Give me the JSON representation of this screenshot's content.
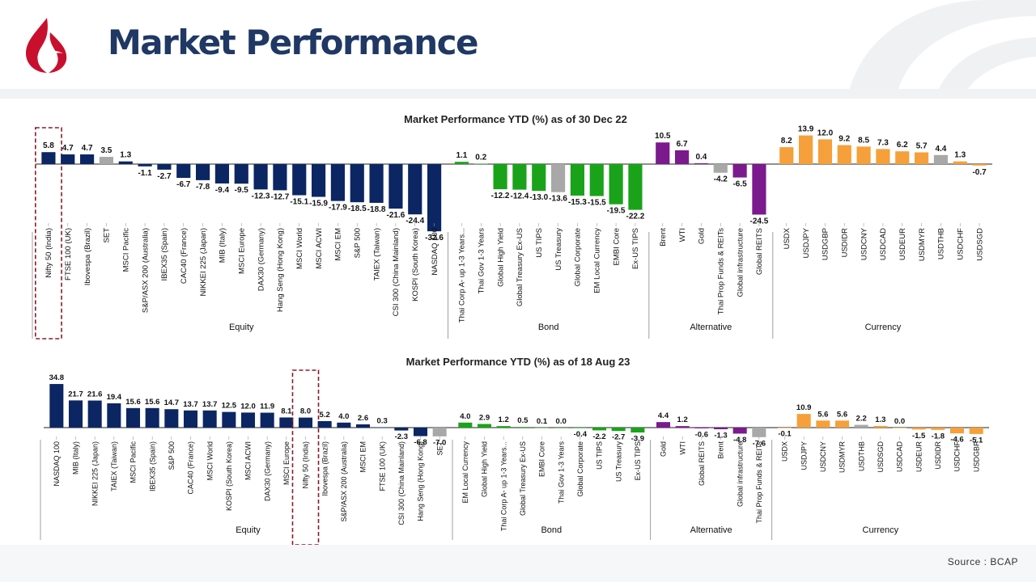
{
  "header": {
    "title": "Market Performance"
  },
  "footer": {
    "source": "Source : BCAP"
  },
  "colors": {
    "Equity": "#0b2663",
    "Bond": "#1aa31a",
    "Alternative": "#7a1a8c",
    "Currency": "#f5a03a",
    "Neutral": "#a8a8a8",
    "Title": "#1f3864",
    "Logo": "#c8102e",
    "Highlight": "#8b1a2b"
  },
  "chart_data": [
    {
      "type": "bar",
      "title": "Market Performance YTD (%) as of 30 Dec 22",
      "highlight": "Nifty 50 (India)",
      "groups": [
        {
          "name": "Equity",
          "color": "#0b2663",
          "categories": [
            "Nifty 50 (India)",
            "FTSE 100 (UK)",
            "Ibovespa (Brazil)",
            "SET",
            "MSCI Pacific",
            "S&P/ASX 200 (Australia)",
            "IBEX35 (Spain)",
            "CAC40 (France)",
            "NIKKEI 225 (Japan)",
            "MIB (Italy)",
            "MSCI Europe",
            "DAX30 (Germany)",
            "Hang Seng (Hong Kong)",
            "MSCI World",
            "MSCI ACWI",
            "MSCI EM",
            "S&P 500",
            "TAIEX (Taiwan)",
            "CSI 300 (China Mainland)",
            "KOSPI (South Korea)",
            "NASDAQ 100"
          ],
          "values": [
            5.8,
            4.7,
            4.7,
            3.5,
            1.3,
            -1.1,
            -2.7,
            -6.7,
            -7.8,
            -9.4,
            -9.5,
            -12.3,
            -12.7,
            -15.1,
            -15.9,
            -17.9,
            -18.5,
            -18.8,
            -21.6,
            -24.4,
            -32.6
          ],
          "gray": [
            "SET"
          ]
        },
        {
          "name": "Bond",
          "color": "#1aa31a",
          "categories": [
            "Thai Corp A- up 1-3 Years...",
            "Thai Gov 1-3 Years",
            "Global High Yield",
            "Global Treasury Ex-US",
            "US TIPS",
            "US Treasury",
            "Global Corporate",
            "EM Local Currency",
            "EMBI Core",
            "Ex-US TIPS"
          ],
          "values": [
            1.1,
            0.2,
            -12.2,
            -12.4,
            -13.0,
            -13.6,
            -15.3,
            -15.5,
            -19.5,
            -22.2
          ],
          "gray": [
            "US Treasury"
          ]
        },
        {
          "name": "Alternative",
          "color": "#7a1a8c",
          "categories": [
            "Brent",
            "WTI",
            "Gold",
            "Thai Prop Funds & REITs",
            "Global infrastructure",
            "Global REITS"
          ],
          "values": [
            10.5,
            6.7,
            0.4,
            -4.2,
            -6.5,
            -24.5
          ],
          "gray": [
            "Thai Prop Funds & REITs"
          ]
        },
        {
          "name": "Currency",
          "color": "#f5a03a",
          "categories": [
            "USDX",
            "USDJPY",
            "USDGBP",
            "USDIDR",
            "USDCNY",
            "USDCAD",
            "USDEUR",
            "USDMYR",
            "USDTHB",
            "USDCHF",
            "USDSGD"
          ],
          "values": [
            8.2,
            13.9,
            12.0,
            9.2,
            8.5,
            7.3,
            6.2,
            5.7,
            4.4,
            1.3,
            -0.7
          ],
          "gray": [
            "USDTHB"
          ]
        }
      ]
    },
    {
      "type": "bar",
      "title": "Market Performance YTD (%) as of 18 Aug 23",
      "highlight": "Nifty 50 (India)",
      "groups": [
        {
          "name": "Equity",
          "color": "#0b2663",
          "categories": [
            "NASDAQ 100",
            "MIB (Italy)",
            "NIKKEI 225 (Japan)",
            "TAIEX (Taiwan)",
            "MSCI Pacific",
            "IBEX35 (Spain)",
            "S&P 500",
            "CAC40 (France)",
            "MSCI World",
            "KOSPI (South Korea)",
            "MSCI ACWI",
            "DAX30 (Germany)",
            "MSCI Europe",
            "Nifty 50 (India)",
            "Ibovespa (Brazil)",
            "S&P/ASX 200 (Australia)",
            "MSCI EM",
            "FTSE 100 (UK)",
            "CSI 300 (China Mainland)",
            "Hang Seng (Hong Kong)",
            "SET"
          ],
          "values": [
            34.8,
            21.7,
            21.6,
            19.4,
            15.6,
            15.6,
            14.7,
            13.7,
            13.7,
            12.5,
            12.0,
            11.9,
            8.1,
            8.0,
            5.2,
            4.0,
            2.6,
            0.3,
            -2.3,
            -6.8,
            -7.0
          ],
          "gray": [
            "SET"
          ]
        },
        {
          "name": "Bond",
          "color": "#1aa31a",
          "categories": [
            "EM Local Currency",
            "Global High Yield",
            "Thai Corp A- up 1-3 Years...",
            "Global Treasury Ex-US",
            "EMBI Core",
            "Thai Gov 1-3 Years",
            "Global Corporate",
            "US TIPS",
            "US Treasury",
            "Ex-US TIPS"
          ],
          "values": [
            4.0,
            2.9,
            1.2,
            0.5,
            0.1,
            0.0,
            -0.4,
            -2.2,
            -2.7,
            -3.9
          ],
          "gray": []
        },
        {
          "name": "Alternative",
          "color": "#7a1a8c",
          "categories": [
            "Gold",
            "WTI",
            "Global REITS",
            "Brent",
            "Global infrastructure",
            "Thai Prop Funds & REITs"
          ],
          "values": [
            4.4,
            1.2,
            -0.6,
            -1.3,
            -4.8,
            -7.6
          ],
          "gray": [
            "Thai Prop Funds & REITs"
          ]
        },
        {
          "name": "Currency",
          "color": "#f5a03a",
          "categories": [
            "USDX",
            "USDJPY",
            "USDCNY",
            "USDMYR",
            "USDTHB",
            "USDSGD",
            "USDCAD",
            "USDEUR",
            "USDIDR",
            "USDCHF",
            "USDGBP"
          ],
          "values": [
            -0.1,
            10.9,
            5.6,
            5.6,
            2.2,
            1.3,
            0.0,
            -1.5,
            -1.8,
            -4.6,
            -5.1
          ],
          "gray": [
            "USDTHB"
          ]
        }
      ]
    }
  ]
}
